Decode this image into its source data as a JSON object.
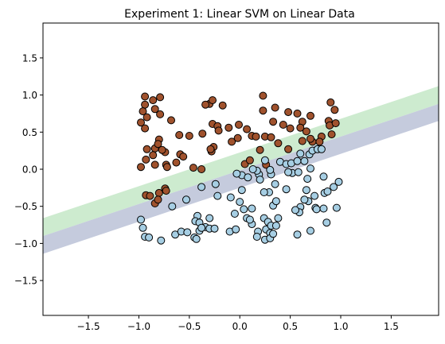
{
  "chart_data": {
    "type": "scatter",
    "title": "Experiment 1: Linear SVM on Linear Data",
    "xlabel": "",
    "ylabel": "",
    "xlim": [
      -1.95,
      1.97
    ],
    "ylim": [
      -1.97,
      1.97
    ],
    "xticks": [
      -1.5,
      -1.0,
      -0.5,
      0.0,
      0.5,
      1.0,
      1.5
    ],
    "yticks": [
      -1.5,
      -1.0,
      -0.5,
      0.0,
      0.5,
      1.0,
      1.5
    ],
    "grid": false,
    "margin_bands": [
      {
        "color": "#cdebcf",
        "upper_line": [
          [
            -1.95,
            -0.66
          ],
          [
            1.97,
            1.12
          ]
        ],
        "lower_line": [
          [
            -1.95,
            -0.9
          ],
          [
            1.97,
            0.88
          ]
        ]
      },
      {
        "color": "#c5cbdd",
        "upper_line": [
          [
            -1.95,
            -0.9
          ],
          [
            1.97,
            0.88
          ]
        ],
        "lower_line": [
          [
            -1.95,
            -1.14
          ],
          [
            1.97,
            0.65
          ]
        ]
      }
    ],
    "series": [
      {
        "color": "#a0522d",
        "points": [
          [
            -0.94,
            0.98
          ],
          [
            -0.79,
            0.97
          ],
          [
            -0.94,
            0.87
          ],
          [
            -0.96,
            0.78
          ],
          [
            -0.86,
            0.93
          ],
          [
            -0.84,
            0.81
          ],
          [
            -0.92,
            0.7
          ],
          [
            -0.98,
            0.63
          ],
          [
            -0.79,
            0.74
          ],
          [
            -0.94,
            0.55
          ],
          [
            -0.92,
            0.27
          ],
          [
            -0.93,
            0.13
          ],
          [
            -0.98,
            0.03
          ],
          [
            -0.8,
            0.4
          ],
          [
            -0.84,
            0.28
          ],
          [
            -0.74,
            0.23
          ],
          [
            -0.86,
            0.19
          ],
          [
            -0.84,
            0.06
          ],
          [
            -0.81,
            0.34
          ],
          [
            -0.77,
            0.26
          ],
          [
            -0.73,
            0.06
          ],
          [
            -0.72,
            0.03
          ],
          [
            -0.63,
            0.09
          ],
          [
            -0.93,
            -0.35
          ],
          [
            -0.89,
            -0.36
          ],
          [
            -0.84,
            -0.46
          ],
          [
            -0.8,
            -0.32
          ],
          [
            -0.74,
            -0.26
          ],
          [
            -0.73,
            -0.29
          ],
          [
            -0.81,
            -0.41
          ],
          [
            -0.68,
            0.66
          ],
          [
            -0.6,
            0.46
          ],
          [
            -0.5,
            0.45
          ],
          [
            -0.59,
            0.2
          ],
          [
            -0.56,
            0.17
          ],
          [
            -0.46,
            0.02
          ],
          [
            -0.38,
            0.0
          ],
          [
            -0.37,
            0.48
          ],
          [
            -0.3,
            0.88
          ],
          [
            -0.27,
            0.93
          ],
          [
            -0.34,
            0.87
          ],
          [
            -0.27,
            0.61
          ],
          [
            -0.22,
            0.58
          ],
          [
            -0.21,
            0.52
          ],
          [
            -0.26,
            0.3
          ],
          [
            -0.28,
            0.24
          ],
          [
            -0.29,
            0.27
          ],
          [
            -0.17,
            0.86
          ],
          [
            -0.11,
            0.56
          ],
          [
            -0.08,
            0.37
          ],
          [
            -0.01,
            0.6
          ],
          [
            -0.02,
            0.42
          ],
          [
            0.07,
            0.54
          ],
          [
            0.12,
            0.45
          ],
          [
            0.16,
            0.44
          ],
          [
            0.05,
            0.07
          ],
          [
            0.1,
            0.12
          ],
          [
            0.23,
            0.99
          ],
          [
            0.23,
            0.79
          ],
          [
            0.35,
            0.83
          ],
          [
            0.33,
            0.64
          ],
          [
            0.25,
            0.44
          ],
          [
            0.31,
            0.43
          ],
          [
            0.2,
            0.26
          ],
          [
            0.38,
            0.35
          ],
          [
            0.48,
            0.77
          ],
          [
            0.5,
            0.55
          ],
          [
            0.57,
            0.75
          ],
          [
            0.62,
            0.64
          ],
          [
            0.6,
            0.56
          ],
          [
            0.7,
            0.72
          ],
          [
            0.66,
            0.51
          ],
          [
            0.72,
            0.37
          ],
          [
            0.7,
            0.41
          ],
          [
            0.81,
            0.44
          ],
          [
            0.88,
            0.65
          ],
          [
            0.9,
            0.9
          ],
          [
            0.89,
            0.59
          ],
          [
            0.94,
            0.8
          ],
          [
            0.91,
            0.47
          ],
          [
            0.95,
            0.62
          ],
          [
            0.79,
            0.37
          ],
          [
            0.62,
            0.38
          ],
          [
            0.43,
            0.6
          ],
          [
            0.48,
            0.27
          ],
          [
            0.26,
            0.06
          ]
        ]
      },
      {
        "color": "#a6cee3",
        "points": [
          [
            -0.98,
            -0.68
          ],
          [
            -0.96,
            -0.79
          ],
          [
            -0.94,
            -0.91
          ],
          [
            -0.9,
            -0.92
          ],
          [
            -0.78,
            -0.96
          ],
          [
            -0.67,
            -0.5
          ],
          [
            -0.64,
            -0.88
          ],
          [
            -0.58,
            -0.84
          ],
          [
            -0.53,
            -0.41
          ],
          [
            -0.52,
            -0.85
          ],
          [
            -0.42,
            -0.63
          ],
          [
            -0.44,
            -0.7
          ],
          [
            -0.4,
            -0.72
          ],
          [
            -0.45,
            -0.92
          ],
          [
            -0.43,
            -0.94
          ],
          [
            -0.4,
            -0.83
          ],
          [
            -0.34,
            -0.78
          ],
          [
            -0.3,
            -0.8
          ],
          [
            -0.38,
            -0.79
          ],
          [
            -0.38,
            -0.24
          ],
          [
            -0.3,
            -0.66
          ],
          [
            -0.22,
            -0.36
          ],
          [
            -0.24,
            -0.2
          ],
          [
            -0.25,
            -0.8
          ],
          [
            -0.1,
            -0.84
          ],
          [
            -0.04,
            -0.81
          ],
          [
            -0.09,
            -0.38
          ],
          [
            -0.05,
            -0.6
          ],
          [
            0.0,
            -0.44
          ],
          [
            0.02,
            -0.08
          ],
          [
            0.02,
            -0.28
          ],
          [
            -0.03,
            -0.06
          ],
          [
            0.04,
            -0.54
          ],
          [
            0.07,
            -0.66
          ],
          [
            0.12,
            -0.74
          ],
          [
            0.12,
            -0.53
          ],
          [
            0.1,
            -0.68
          ],
          [
            0.18,
            -0.84
          ],
          [
            0.17,
            -0.91
          ],
          [
            0.24,
            -0.66
          ],
          [
            0.26,
            -0.81
          ],
          [
            0.28,
            -0.71
          ],
          [
            0.25,
            -0.95
          ],
          [
            0.3,
            -0.86
          ],
          [
            0.3,
            -0.93
          ],
          [
            0.33,
            -0.87
          ],
          [
            0.31,
            -0.76
          ],
          [
            0.33,
            -0.49
          ],
          [
            0.38,
            -0.66
          ],
          [
            0.36,
            -0.76
          ],
          [
            0.36,
            -0.43
          ],
          [
            0.29,
            -0.31
          ],
          [
            0.19,
            -0.07
          ],
          [
            0.2,
            -0.14
          ],
          [
            0.31,
            -0.07
          ],
          [
            0.3,
            -0.01
          ],
          [
            0.17,
            -0.02
          ],
          [
            0.13,
            0.0
          ],
          [
            0.08,
            -0.11
          ],
          [
            0.25,
            0.12
          ],
          [
            0.4,
            0.1
          ],
          [
            0.46,
            0.07
          ],
          [
            0.51,
            0.08
          ],
          [
            0.52,
            -0.05
          ],
          [
            0.58,
            -0.04
          ],
          [
            0.57,
            0.11
          ],
          [
            0.64,
            0.11
          ],
          [
            0.69,
            0.2
          ],
          [
            0.72,
            0.25
          ],
          [
            0.77,
            0.27
          ],
          [
            0.81,
            0.27
          ],
          [
            0.83,
            -0.1
          ],
          [
            0.67,
            -0.13
          ],
          [
            0.66,
            -0.28
          ],
          [
            0.68,
            -0.43
          ],
          [
            0.74,
            -0.36
          ],
          [
            0.84,
            -0.32
          ],
          [
            0.87,
            -0.3
          ],
          [
            0.93,
            -0.24
          ],
          [
            0.98,
            -0.17
          ],
          [
            0.96,
            -0.52
          ],
          [
            0.75,
            -0.52
          ],
          [
            0.76,
            -0.54
          ],
          [
            0.83,
            -0.53
          ],
          [
            0.6,
            -0.51
          ],
          [
            0.59,
            -0.58
          ],
          [
            0.64,
            -0.41
          ],
          [
            0.55,
            -0.55
          ],
          [
            0.57,
            -0.88
          ],
          [
            0.7,
            -0.83
          ],
          [
            0.86,
            -0.72
          ],
          [
            0.6,
            0.21
          ],
          [
            0.46,
            -0.27
          ],
          [
            0.48,
            -0.04
          ],
          [
            0.35,
            -0.2
          ],
          [
            0.7,
            0.01
          ],
          [
            0.24,
            -0.31
          ]
        ]
      }
    ]
  }
}
